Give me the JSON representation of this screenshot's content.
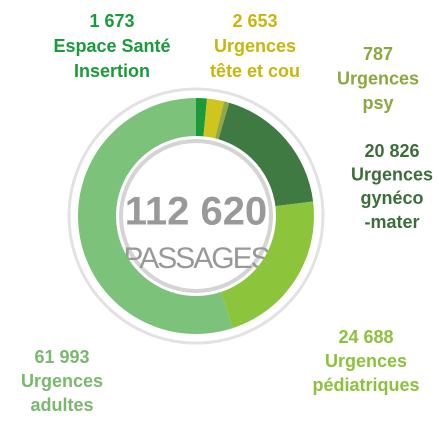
{
  "chart_data": {
    "type": "donut",
    "center_label": "112 620",
    "center_caption": "PASSAGES",
    "categories": [
      [
        "Espace Santé",
        "Insertion"
      ],
      [
        "Urgences",
        "tête et cou"
      ],
      [
        "Urgences",
        "psy"
      ],
      [
        "Urgences",
        "gynéco",
        "-mater"
      ],
      [
        "Urgences",
        "pédiatriques"
      ],
      [
        "Urgences",
        "adultes"
      ]
    ],
    "values": [
      1673,
      2653,
      787,
      20826,
      24688,
      61993
    ],
    "value_labels": [
      "1 673",
      "2 653",
      "787",
      "20 826",
      "24 688",
      "61 993"
    ],
    "colors": [
      "#1a9a3a",
      "#cfc51e",
      "#8fa848",
      "#3f7a42",
      "#8cc43c",
      "#7cc27a"
    ],
    "label_colors": [
      "#1a9a3a",
      "#c9b60c",
      "#8aa840",
      "#3d6e3a",
      "#8cc13c",
      "#7ab86e"
    ]
  }
}
